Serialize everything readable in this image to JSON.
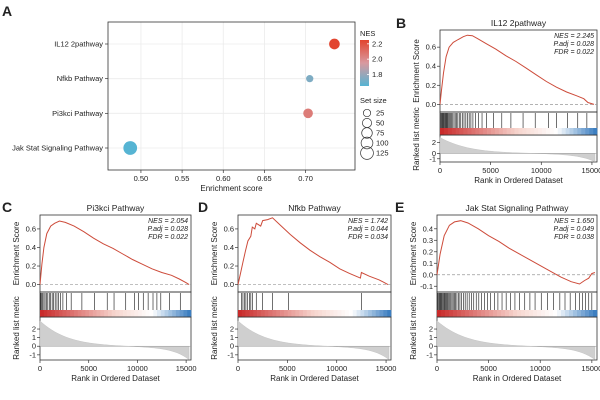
{
  "figure": {
    "panel_letters": [
      "A",
      "B",
      "C",
      "D",
      "E"
    ]
  },
  "chart_data": [
    {
      "id": "A",
      "type": "scatter",
      "title": "",
      "xlabel": "Enrichment score",
      "ylabel": "",
      "xlim": [
        0.46,
        0.76
      ],
      "xticks": [
        "0.50",
        "0.55",
        "0.60",
        "0.65",
        "0.70"
      ],
      "xtick_values": [
        0.5,
        0.55,
        0.6,
        0.65,
        0.7
      ],
      "categories": [
        "IL12 2pathway",
        "Nfkb Pathway",
        "Pi3kci Pathway",
        "Jak Stat Signaling Pathway"
      ],
      "points": [
        {
          "pathway": "IL12 2pathway",
          "es": 0.735,
          "nes": 2.245,
          "set_size": 60
        },
        {
          "pathway": "Nfkb Pathway",
          "es": 0.705,
          "nes": 1.742,
          "set_size": 18
        },
        {
          "pathway": "Pi3kci Pathway",
          "es": 0.703,
          "nes": 2.054,
          "set_size": 45
        },
        {
          "pathway": "Jak Stat Signaling Pathway",
          "es": 0.487,
          "nes": 1.65,
          "set_size": 120
        }
      ],
      "color_legend": {
        "title": "NES",
        "ticks": [
          "2.2",
          "2.0",
          "1.8"
        ],
        "tick_values": [
          2.2,
          2.0,
          1.8
        ],
        "range": [
          1.65,
          2.25
        ],
        "low_color": "#56b4d3",
        "mid_color": "#d9999f",
        "high_color": "#e2442e"
      },
      "size_legend": {
        "title": "Set size",
        "labels": [
          "25",
          "50",
          "75",
          "100",
          "125"
        ],
        "values": [
          25,
          50,
          75,
          100,
          125
        ]
      }
    },
    {
      "id": "B",
      "type": "line",
      "title": "IL12 2pathway",
      "nes": "NES = 2.245",
      "padj": "P.adj = 0.028",
      "fdr": "FDR = 0.022",
      "ylabel_top": "Enrichment Score",
      "ylabel_bottom": "Ranked list metric",
      "xlabel": "Rank in Ordered Dataset",
      "xlim": [
        0,
        15500
      ],
      "xticks": [
        "0",
        "5000",
        "10000",
        "15000"
      ],
      "xtick_values": [
        0,
        5000,
        10000,
        15000
      ],
      "ylim_top": [
        -0.08,
        0.78
      ],
      "yticks_top": [
        "0.6",
        "0.4",
        "0.2",
        "0.0"
      ],
      "ytick_values_top": [
        0.6,
        0.4,
        0.2,
        0.0
      ],
      "ylim_bottom": [
        -1.6,
        3.4
      ],
      "yticks_bottom": [
        "2",
        "0",
        "-1"
      ],
      "ytick_values_bottom": [
        2,
        0,
        -1
      ],
      "curve": [
        [
          0,
          0
        ],
        [
          150,
          0.15
        ],
        [
          350,
          0.33
        ],
        [
          600,
          0.5
        ],
        [
          900,
          0.6
        ],
        [
          1300,
          0.65
        ],
        [
          1800,
          0.68
        ],
        [
          2300,
          0.71
        ],
        [
          2700,
          0.725
        ],
        [
          3200,
          0.72
        ],
        [
          3700,
          0.69
        ],
        [
          4500,
          0.64
        ],
        [
          5500,
          0.58
        ],
        [
          6500,
          0.51
        ],
        [
          7500,
          0.45
        ],
        [
          8500,
          0.38
        ],
        [
          9500,
          0.31
        ],
        [
          10500,
          0.24
        ],
        [
          11500,
          0.18
        ],
        [
          12500,
          0.13
        ],
        [
          13500,
          0.09
        ],
        [
          14200,
          0.06
        ],
        [
          14600,
          0.02
        ],
        [
          15200,
          0.0
        ]
      ],
      "hits": [
        90,
        160,
        230,
        300,
        380,
        450,
        520,
        600,
        680,
        760,
        850,
        950,
        1050,
        1150,
        1260,
        1380,
        1500,
        1620,
        1760,
        1900,
        2050,
        2200,
        2370,
        2550,
        2700,
        2880,
        3050,
        3250,
        3500,
        3800,
        4150,
        4600,
        5300,
        6100,
        7000,
        8200,
        9400,
        10700,
        11500,
        12600,
        13600,
        14500
      ]
    },
    {
      "id": "C",
      "type": "line",
      "title": "Pi3kci Pathway",
      "nes": "NES = 2.054",
      "padj": "P.adj = 0.028",
      "fdr": "FDR = 0.022",
      "ylabel_top": "Enrichment Score",
      "ylabel_bottom": "Ranked list metric",
      "xlabel": "Rank in Ordered Dataset",
      "xlim": [
        0,
        15500
      ],
      "xticks": [
        "0",
        "5000",
        "10000",
        "15000"
      ],
      "xtick_values": [
        0,
        5000,
        10000,
        15000
      ],
      "ylim_top": [
        -0.08,
        0.75
      ],
      "yticks_top": [
        "0.6",
        "0.4",
        "0.2",
        "0.0"
      ],
      "ytick_values_top": [
        0.6,
        0.4,
        0.2,
        0.0
      ],
      "ylim_bottom": [
        -1.6,
        3.4
      ],
      "yticks_bottom": [
        "2",
        "1",
        "0",
        "-1"
      ],
      "ytick_values_bottom": [
        2,
        1,
        0,
        -1
      ],
      "curve": [
        [
          0,
          0
        ],
        [
          200,
          0.22
        ],
        [
          400,
          0.4
        ],
        [
          700,
          0.55
        ],
        [
          1100,
          0.63
        ],
        [
          1500,
          0.66
        ],
        [
          2000,
          0.685
        ],
        [
          2600,
          0.67
        ],
        [
          3500,
          0.63
        ],
        [
          4500,
          0.57
        ],
        [
          5500,
          0.5
        ],
        [
          6500,
          0.44
        ],
        [
          7500,
          0.39
        ],
        [
          8500,
          0.33
        ],
        [
          9500,
          0.27
        ],
        [
          10500,
          0.22
        ],
        [
          11500,
          0.17
        ],
        [
          12500,
          0.13
        ],
        [
          13500,
          0.1
        ],
        [
          14300,
          0.06
        ],
        [
          15000,
          0.02
        ],
        [
          15300,
          0.0
        ]
      ],
      "hits": [
        80,
        180,
        280,
        400,
        520,
        650,
        800,
        950,
        1100,
        1250,
        1400,
        1560,
        1740,
        1900,
        2100,
        2350,
        2700,
        3200,
        4300,
        5600,
        6900,
        7600,
        8800,
        9700,
        10100,
        10600,
        11100,
        11600,
        12000,
        12400,
        13300,
        14400
      ]
    },
    {
      "id": "D",
      "type": "line",
      "title": "Nfkb Pathway",
      "nes": "NES = 1.742",
      "padj": "P.adj = 0.044",
      "fdr": "FDR = 0.034",
      "ylabel_top": "Enrichment Score",
      "ylabel_bottom": "Ranked list metric",
      "xlabel": "Rank in Ordered Dataset",
      "xlim": [
        0,
        15500
      ],
      "xticks": [
        "0",
        "5000",
        "10000",
        "15000"
      ],
      "xtick_values": [
        0,
        5000,
        10000,
        15000
      ],
      "ylim_top": [
        -0.08,
        0.75
      ],
      "yticks_top": [
        "0.6",
        "0.4",
        "0.2",
        "0.0"
      ],
      "ytick_values_top": [
        0.6,
        0.4,
        0.2,
        0.0
      ],
      "ylim_bottom": [
        -1.6,
        3.4
      ],
      "yticks_bottom": [
        "2",
        "1",
        "0",
        "-1"
      ],
      "ytick_values_bottom": [
        2,
        1,
        0,
        -1
      ],
      "curve": [
        [
          0,
          0
        ],
        [
          250,
          0.12
        ],
        [
          500,
          0.24
        ],
        [
          750,
          0.36
        ],
        [
          1000,
          0.47
        ],
        [
          1300,
          0.52
        ],
        [
          1450,
          0.62
        ],
        [
          1700,
          0.6
        ],
        [
          1850,
          0.66
        ],
        [
          2300,
          0.63
        ],
        [
          2500,
          0.69
        ],
        [
          3000,
          0.7
        ],
        [
          3500,
          0.72
        ],
        [
          4300,
          0.64
        ],
        [
          5300,
          0.54
        ],
        [
          6300,
          0.45
        ],
        [
          7300,
          0.37
        ],
        [
          8300,
          0.3
        ],
        [
          9300,
          0.24
        ],
        [
          10300,
          0.17
        ],
        [
          11300,
          0.12
        ],
        [
          12400,
          0.07
        ],
        [
          12500,
          0.13
        ],
        [
          13300,
          0.09
        ],
        [
          14300,
          0.05
        ],
        [
          15200,
          0.0
        ]
      ],
      "hits": [
        350,
        500,
        650,
        800,
        950,
        1150,
        1300,
        1450,
        1850,
        2500,
        3500,
        5100,
        12500
      ]
    },
    {
      "id": "E",
      "type": "line",
      "title": "Jak Stat Signaling Pathway",
      "nes": "NES = 1.650",
      "padj": "P.adj = 0.049",
      "fdr": "FDR = 0.038",
      "ylabel_top": "Enrichment Score",
      "ylabel_bottom": "Ranked list metric",
      "xlabel": "Rank in Ordered Dataset",
      "xlim": [
        0,
        15500
      ],
      "xticks": [
        "0",
        "5000",
        "10000",
        "15000"
      ],
      "xtick_values": [
        0,
        5000,
        10000,
        15000
      ],
      "ylim_top": [
        -0.15,
        0.52
      ],
      "yticks_top": [
        "0.4",
        "0.3",
        "0.2",
        "0.1",
        "0.0",
        "-0.1"
      ],
      "ytick_values_top": [
        0.4,
        0.3,
        0.2,
        0.1,
        0.0,
        -0.1
      ],
      "ylim_bottom": [
        -1.6,
        3.4
      ],
      "yticks_bottom": [
        "2",
        "1",
        "0",
        "-1"
      ],
      "ytick_values_bottom": [
        2,
        1,
        0,
        -1
      ],
      "curve": [
        [
          0,
          0
        ],
        [
          300,
          0.18
        ],
        [
          700,
          0.34
        ],
        [
          1200,
          0.43
        ],
        [
          1700,
          0.46
        ],
        [
          2300,
          0.47
        ],
        [
          3000,
          0.45
        ],
        [
          4000,
          0.4
        ],
        [
          5000,
          0.34
        ],
        [
          6000,
          0.29
        ],
        [
          7000,
          0.23
        ],
        [
          8000,
          0.18
        ],
        [
          9000,
          0.13
        ],
        [
          10000,
          0.08
        ],
        [
          11000,
          0.03
        ],
        [
          12000,
          -0.02
        ],
        [
          13000,
          -0.06
        ],
        [
          13800,
          -0.08
        ],
        [
          14300,
          -0.05
        ],
        [
          14700,
          -0.03
        ],
        [
          15000,
          0.01
        ],
        [
          15300,
          0.02
        ]
      ],
      "hits": [
        60,
        140,
        220,
        300,
        380,
        460,
        540,
        620,
        700,
        780,
        870,
        960,
        1050,
        1150,
        1250,
        1350,
        1460,
        1570,
        1680,
        1800,
        1930,
        2070,
        2220,
        2380,
        2550,
        2730,
        2920,
        3120,
        3330,
        3560,
        3800,
        4050,
        4320,
        4600,
        4900,
        5200,
        5550,
        5900,
        6300,
        6700,
        7100,
        7550,
        8000,
        8500,
        9000,
        9500,
        10100,
        10700,
        11300,
        11900,
        12400,
        12900,
        13400,
        13800,
        14100,
        14400,
        14700,
        15000
      ]
    }
  ]
}
